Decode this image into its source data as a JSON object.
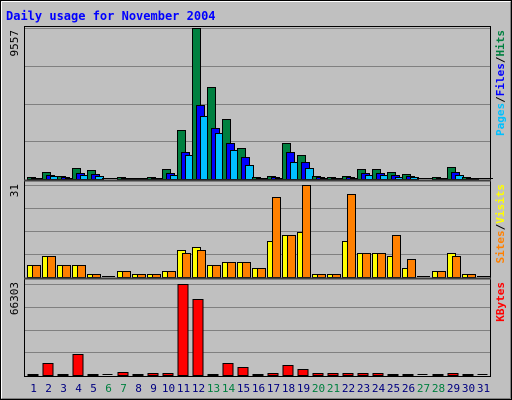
{
  "chart_data": {
    "type": "bar",
    "title": "Daily usage for November 2004",
    "categories": [
      "1",
      "2",
      "3",
      "4",
      "5",
      "6",
      "7",
      "8",
      "9",
      "10",
      "11",
      "12",
      "13",
      "14",
      "15",
      "16",
      "17",
      "18",
      "19",
      "20",
      "21",
      "22",
      "23",
      "24",
      "25",
      "26",
      "27",
      "28",
      "29",
      "30",
      "31"
    ],
    "weekend_days": [
      "6",
      "7",
      "13",
      "14",
      "20",
      "21",
      "27",
      "28"
    ],
    "panels": [
      {
        "id": "hits-files-pages",
        "ymax_label": "9557",
        "ymax": 9557,
        "legend": [
          "Pages",
          "/",
          "Files",
          "/",
          "Hits"
        ],
        "series": [
          {
            "name": "Hits",
            "color": "#008040",
            "values": [
              120,
              420,
              180,
              700,
              560,
              0,
              120,
              80,
              100,
              650,
              3100,
              9557,
              5800,
              3800,
              1950,
              130,
              200,
              2300,
              1550,
              220,
              100,
              220,
              650,
              650,
              420,
              320,
              0,
              110,
              760,
              100,
              0
            ]
          },
          {
            "name": "Files",
            "color": "#0000ff",
            "values": [
              60,
              250,
              110,
              390,
              330,
              0,
              60,
              40,
              60,
              380,
              1700,
              4700,
              3200,
              2300,
              1400,
              70,
              100,
              1700,
              1050,
              120,
              60,
              140,
              370,
              370,
              230,
              180,
              0,
              60,
              420,
              60,
              0
            ]
          },
          {
            "name": "Pages",
            "color": "#00c0ff",
            "values": [
              40,
              160,
              70,
              260,
              220,
              0,
              40,
              30,
              40,
              260,
              1500,
              4000,
              2900,
              1850,
              900,
              50,
              80,
              1050,
              700,
              80,
              40,
              90,
              250,
              250,
              150,
              120,
              0,
              40,
              280,
              40,
              0
            ]
          }
        ]
      },
      {
        "id": "visits-sites",
        "ymax_label": "31",
        "ymax": 31,
        "legend": [
          "Sites",
          "/",
          "Visits"
        ],
        "series": [
          {
            "name": "Visits",
            "color": "#ffff00",
            "values": [
              4,
              7,
              4,
              4,
              1,
              0,
              2,
              1,
              1,
              2,
              9,
              10,
              4,
              5,
              5,
              3,
              12,
              14,
              15,
              1,
              1,
              12,
              8,
              8,
              7,
              3,
              0,
              2,
              8,
              1,
              0
            ]
          },
          {
            "name": "Sites",
            "color": "#ff8000",
            "values": [
              4,
              7,
              4,
              4,
              1,
              0,
              2,
              1,
              1,
              2,
              8,
              9,
              4,
              5,
              5,
              3,
              27,
              14,
              31,
              1,
              1,
              28,
              8,
              8,
              14,
              6,
              0,
              2,
              7,
              1,
              0
            ]
          }
        ]
      },
      {
        "id": "kbytes",
        "ymax_label": "66303",
        "ymax": 66303,
        "legend": [
          "KBytes"
        ],
        "series": [
          {
            "name": "KBytes",
            "color": "#ff0000",
            "values": [
              300,
              8500,
              300,
              15000,
              300,
              0,
              2500,
              300,
              1500,
              1500,
              66303,
              55500,
              300,
              8500,
              5500,
              300,
              1500,
              7000,
              4500,
              1200,
              1200,
              1200,
              1200,
              1200,
              700,
              700,
              0,
              700,
              1500,
              300,
              0
            ]
          }
        ]
      }
    ],
    "colors": {
      "title": "#0000ff",
      "weekday_label": "#000080",
      "weekend_label": "#008040",
      "plot_bg": "#c0c0c0",
      "grid": "#808080",
      "separator": "#404040"
    }
  }
}
